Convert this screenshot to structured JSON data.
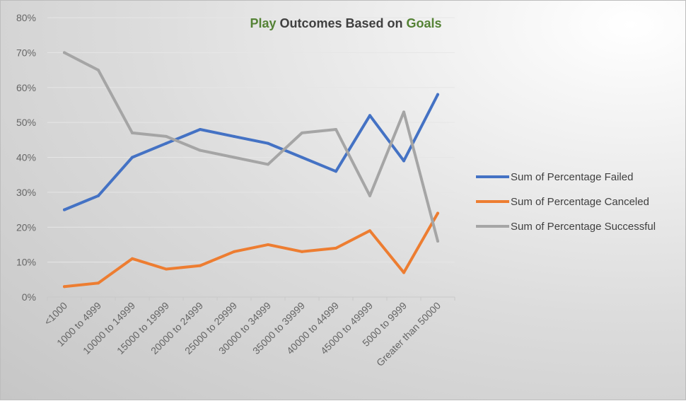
{
  "chart_data": {
    "type": "line",
    "title": {
      "parts": [
        {
          "text": "Play",
          "color": "#548235"
        },
        {
          "text": " Outcomes Based on ",
          "color": "#404040"
        },
        {
          "text": "Goals",
          "color": "#548235"
        }
      ]
    },
    "xlabel": "",
    "ylabel": "",
    "categories": [
      "<1000",
      "1000 to 4999",
      "10000 to 14999",
      "15000 to 19999",
      "20000 to 24999",
      "25000 to 29999",
      "30000 to 34999",
      "35000 to 39999",
      "40000 to 44999",
      "45000 to 49999",
      "5000 to 9999",
      "Greater than 50000"
    ],
    "y_ticks": [
      "0%",
      "10%",
      "20%",
      "30%",
      "40%",
      "50%",
      "60%",
      "70%",
      "80%"
    ],
    "ylim": [
      0,
      80
    ],
    "grid": true,
    "legend_position": "right",
    "series": [
      {
        "name": "Sum of Percentage Failed",
        "color": "#4472C4",
        "values": [
          25,
          29,
          40,
          44,
          48,
          46,
          44,
          40,
          36,
          52,
          39,
          58
        ]
      },
      {
        "name": "Sum of Percentage Canceled",
        "color": "#ED7D31",
        "values": [
          3,
          4,
          11,
          8,
          9,
          13,
          15,
          13,
          14,
          19,
          7,
          24
        ]
      },
      {
        "name": "Sum of Percentage Successful",
        "color": "#A5A5A5",
        "values": [
          70,
          65,
          47,
          46,
          42,
          40,
          38,
          47,
          48,
          29,
          53,
          16
        ]
      }
    ]
  }
}
